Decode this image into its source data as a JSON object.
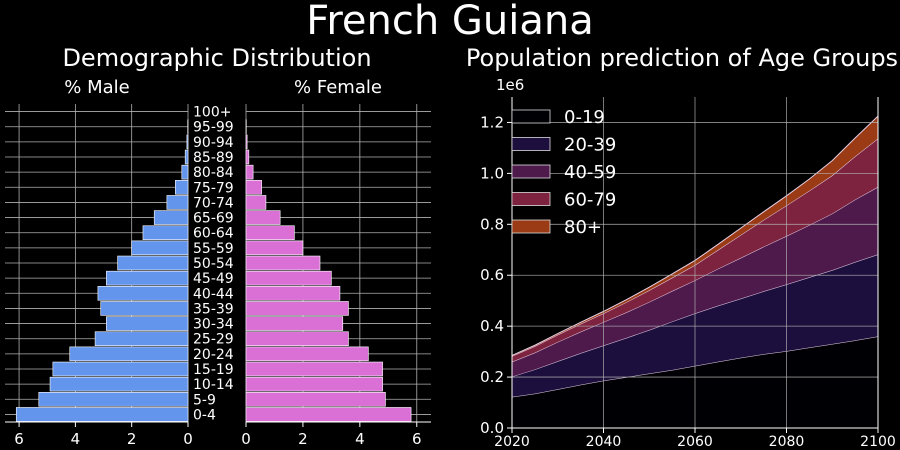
{
  "page_title": "French Guiana",
  "colors": {
    "background": "#000000",
    "male": "#6495ed",
    "female": "#da70d6",
    "bar_edge": "#ffffff",
    "grid": "#b0b0b0",
    "axis": "#ffffff"
  },
  "chart_data": [
    {
      "type": "bar",
      "orientation": "horizontal",
      "title": "Demographic Distribution",
      "male_label": "% Male",
      "female_label": "% Female",
      "categories": [
        "0-4",
        "5-9",
        "10-14",
        "15-19",
        "20-24",
        "25-29",
        "30-34",
        "35-39",
        "40-44",
        "45-49",
        "50-54",
        "55-59",
        "60-64",
        "65-69",
        "70-74",
        "75-79",
        "80-84",
        "85-89",
        "90-94",
        "95-99",
        "100+"
      ],
      "series": [
        {
          "name": "% Male",
          "values": [
            6.1,
            5.3,
            4.9,
            4.8,
            4.2,
            3.3,
            2.9,
            3.1,
            3.2,
            2.9,
            2.5,
            2.0,
            1.6,
            1.2,
            0.75,
            0.45,
            0.22,
            0.1,
            0.04,
            0.01,
            0.0
          ]
        },
        {
          "name": "% Female",
          "values": [
            5.8,
            4.9,
            4.8,
            4.8,
            4.3,
            3.6,
            3.4,
            3.6,
            3.3,
            3.0,
            2.6,
            2.0,
            1.7,
            1.2,
            0.7,
            0.55,
            0.25,
            0.1,
            0.04,
            0.01,
            0.0
          ]
        }
      ],
      "xlim": [
        0,
        6.5
      ],
      "xticks": [
        0,
        2,
        4,
        6
      ],
      "grid": true
    },
    {
      "type": "area",
      "stacked": true,
      "title": "Population prediction of Age Groups",
      "y_scale_label": "1e6",
      "x": [
        2020,
        2025,
        2030,
        2035,
        2040,
        2045,
        2050,
        2055,
        2060,
        2065,
        2070,
        2075,
        2080,
        2085,
        2090,
        2095,
        2100
      ],
      "series": [
        {
          "name": "0-19",
          "color": "#000004",
          "values": [
            0.122,
            0.135,
            0.152,
            0.17,
            0.186,
            0.2,
            0.214,
            0.228,
            0.244,
            0.26,
            0.276,
            0.29,
            0.302,
            0.316,
            0.33,
            0.344,
            0.36
          ]
        },
        {
          "name": "20-39",
          "color": "#1d0f3d",
          "values": [
            0.08,
            0.095,
            0.11,
            0.124,
            0.138,
            0.154,
            0.171,
            0.19,
            0.206,
            0.22,
            0.232,
            0.247,
            0.262,
            0.276,
            0.29,
            0.308,
            0.322
          ]
        },
        {
          "name": "40-59",
          "color": "#4e1a4c",
          "values": [
            0.058,
            0.066,
            0.076,
            0.084,
            0.092,
            0.1,
            0.11,
            0.12,
            0.13,
            0.145,
            0.16,
            0.175,
            0.19,
            0.205,
            0.222,
            0.245,
            0.265
          ]
        },
        {
          "name": "60-79",
          "color": "#7d2340",
          "values": [
            0.022,
            0.025,
            0.028,
            0.031,
            0.034,
            0.04,
            0.046,
            0.052,
            0.06,
            0.074,
            0.09,
            0.105,
            0.12,
            0.135,
            0.15,
            0.17,
            0.19
          ]
        },
        {
          "name": "80+",
          "color": "#9a3b16",
          "values": [
            0.003,
            0.004,
            0.005,
            0.006,
            0.008,
            0.01,
            0.012,
            0.015,
            0.018,
            0.022,
            0.027,
            0.032,
            0.038,
            0.046,
            0.058,
            0.072,
            0.088
          ]
        }
      ],
      "xlim": [
        2020,
        2100
      ],
      "ylim": [
        0,
        1.3
      ],
      "xticks": [
        2020,
        2040,
        2060,
        2080,
        2100
      ],
      "yticks": [
        "0.0",
        "0.2",
        "0.4",
        "0.6",
        "0.8",
        "1.0",
        "1.2"
      ],
      "legend_position": "top-left",
      "grid": true
    }
  ]
}
